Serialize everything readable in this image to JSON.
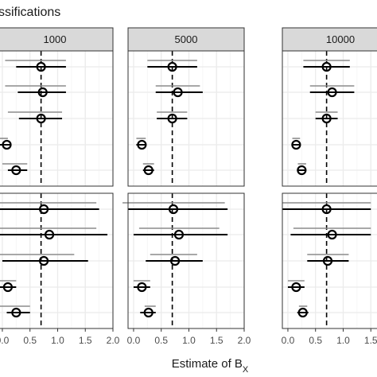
{
  "chart_data": {
    "type": "scatter",
    "title": "ssifications",
    "xlabel": "Estimate of B",
    "xlabel_subscript": "X",
    "xlim": [
      -0.1,
      2.0
    ],
    "ticks": [
      "0.0",
      "0.5",
      "1.0",
      "1.5",
      "2.0"
    ],
    "tick_values": [
      0.0,
      0.5,
      1.0,
      1.5,
      2.0
    ],
    "reference_line": 0.7,
    "columns": [
      "1000",
      "5000",
      "10000"
    ],
    "grid": true,
    "panels": [
      {
        "column": "1000",
        "row": 1,
        "points": [
          {
            "estimate": 0.7,
            "ci_lo": 0.25,
            "ci_hi": 1.15,
            "gray_lo": 0.05,
            "gray_hi": 1.15
          },
          {
            "estimate": 0.73,
            "ci_lo": 0.28,
            "ci_hi": 1.15,
            "gray_lo": 0.05,
            "gray_hi": 1.15
          },
          {
            "estimate": 0.7,
            "ci_lo": 0.3,
            "ci_hi": 1.08,
            "gray_lo": 0.1,
            "gray_hi": 1.08
          },
          {
            "estimate": 0.08,
            "ci_lo": -0.1,
            "ci_hi": 0.15,
            "gray_lo": -0.1,
            "gray_hi": 0.1
          },
          {
            "estimate": 0.25,
            "ci_lo": 0.1,
            "ci_hi": 0.45,
            "gray_lo": 0.0,
            "gray_hi": 0.45
          }
        ]
      },
      {
        "column": "5000",
        "row": 1,
        "points": [
          {
            "estimate": 0.7,
            "ci_lo": 0.25,
            "ci_hi": 1.15,
            "gray_lo": 0.25,
            "gray_hi": 1.15
          },
          {
            "estimate": 0.8,
            "ci_lo": 0.4,
            "ci_hi": 1.25,
            "gray_lo": 0.4,
            "gray_hi": 1.2
          },
          {
            "estimate": 0.7,
            "ci_lo": 0.42,
            "ci_hi": 0.97,
            "gray_lo": 0.42,
            "gray_hi": 0.97
          },
          {
            "estimate": 0.15,
            "ci_lo": 0.05,
            "ci_hi": 0.22,
            "gray_lo": 0.05,
            "gray_hi": 0.22
          },
          {
            "estimate": 0.27,
            "ci_lo": 0.17,
            "ci_hi": 0.37,
            "gray_lo": 0.17,
            "gray_hi": 0.37
          }
        ]
      },
      {
        "column": "10000",
        "row": 1,
        "points": [
          {
            "estimate": 0.7,
            "ci_lo": 0.28,
            "ci_hi": 1.12,
            "gray_lo": 0.28,
            "gray_hi": 1.12
          },
          {
            "estimate": 0.8,
            "ci_lo": 0.4,
            "ci_hi": 1.2,
            "gray_lo": 0.4,
            "gray_hi": 1.2
          },
          {
            "estimate": 0.7,
            "ci_lo": 0.5,
            "ci_hi": 0.9,
            "gray_lo": 0.5,
            "gray_hi": 0.9
          },
          {
            "estimate": 0.15,
            "ci_lo": 0.08,
            "ci_hi": 0.22,
            "gray_lo": 0.08,
            "gray_hi": 0.22
          },
          {
            "estimate": 0.25,
            "ci_lo": 0.18,
            "ci_hi": 0.33,
            "gray_lo": 0.18,
            "gray_hi": 0.33
          }
        ]
      },
      {
        "column": "1000",
        "row": 2,
        "points": [
          {
            "estimate": 0.75,
            "ci_lo": -0.1,
            "ci_hi": 1.75,
            "gray_lo": -0.1,
            "gray_hi": 1.7
          },
          {
            "estimate": 0.85,
            "ci_lo": -0.1,
            "ci_hi": 1.9,
            "gray_lo": -0.1,
            "gray_hi": 1.7
          },
          {
            "estimate": 0.75,
            "ci_lo": 0.0,
            "ci_hi": 1.55,
            "gray_lo": -0.1,
            "gray_hi": 1.3
          },
          {
            "estimate": 0.1,
            "ci_lo": -0.1,
            "ci_hi": 0.25,
            "gray_lo": -0.1,
            "gray_hi": 0.25
          },
          {
            "estimate": 0.25,
            "ci_lo": 0.08,
            "ci_hi": 0.5,
            "gray_lo": -0.1,
            "gray_hi": 0.5
          }
        ]
      },
      {
        "column": "5000",
        "row": 2,
        "points": [
          {
            "estimate": 0.72,
            "ci_lo": -0.1,
            "ci_hi": 1.7,
            "gray_lo": -0.2,
            "gray_hi": 1.65
          },
          {
            "estimate": 0.82,
            "ci_lo": 0.0,
            "ci_hi": 1.7,
            "gray_lo": 0.1,
            "gray_hi": 1.55
          },
          {
            "estimate": 0.75,
            "ci_lo": 0.22,
            "ci_hi": 1.25,
            "gray_lo": 0.3,
            "gray_hi": 1.15
          },
          {
            "estimate": 0.15,
            "ci_lo": 0.0,
            "ci_hi": 0.3,
            "gray_lo": 0.0,
            "gray_hi": 0.3
          },
          {
            "estimate": 0.27,
            "ci_lo": 0.12,
            "ci_hi": 0.4,
            "gray_lo": 0.2,
            "gray_hi": 0.4
          }
        ]
      },
      {
        "column": "10000",
        "row": 2,
        "points": [
          {
            "estimate": 0.7,
            "ci_lo": -0.1,
            "ci_hi": 1.5,
            "gray_lo": -0.1,
            "gray_hi": 1.5
          },
          {
            "estimate": 0.8,
            "ci_lo": 0.05,
            "ci_hi": 1.5,
            "gray_lo": 0.1,
            "gray_hi": 1.5
          },
          {
            "estimate": 0.72,
            "ci_lo": 0.35,
            "ci_hi": 1.1,
            "gray_lo": 0.35,
            "gray_hi": 1.1
          },
          {
            "estimate": 0.15,
            "ci_lo": 0.0,
            "ci_hi": 0.3,
            "gray_lo": 0.0,
            "gray_hi": 0.3
          },
          {
            "estimate": 0.27,
            "ci_lo": 0.17,
            "ci_hi": 0.37,
            "gray_lo": 0.2,
            "gray_hi": 0.35
          }
        ]
      }
    ]
  },
  "colors": {
    "estimate": "#000000",
    "interval": "#000000",
    "alt_interval": "#8c8c8c",
    "grid": "#ebebeb",
    "strip_fill": "#d9d9d9",
    "panel_border": "#333333"
  }
}
